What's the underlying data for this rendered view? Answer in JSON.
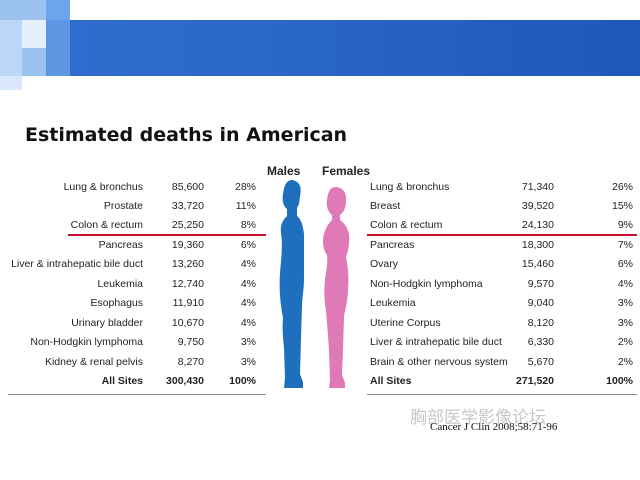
{
  "title": "Estimated deaths in American",
  "headers": {
    "males": "Males",
    "females": "Females"
  },
  "males": {
    "rows": [
      {
        "site": "Lung & bronchus",
        "deaths": "85,600",
        "pct": "28%"
      },
      {
        "site": "Prostate",
        "deaths": "33,720",
        "pct": "11%"
      },
      {
        "site": "Colon & rectum",
        "deaths": "25,250",
        "pct": "8%"
      },
      {
        "site": "Pancreas",
        "deaths": "19,360",
        "pct": "6%"
      },
      {
        "site": "Liver & intrahepatic bile duct",
        "deaths": "13,260",
        "pct": "4%"
      },
      {
        "site": "Leukemia",
        "deaths": "12,740",
        "pct": "4%"
      },
      {
        "site": "Esophagus",
        "deaths": "11,910",
        "pct": "4%"
      },
      {
        "site": "Urinary bladder",
        "deaths": "10,670",
        "pct": "4%"
      },
      {
        "site": "Non-Hodgkin lymphoma",
        "deaths": "9,750",
        "pct": "3%"
      },
      {
        "site": "Kidney & renal pelvis",
        "deaths": "8,270",
        "pct": "3%"
      }
    ],
    "total": {
      "site": "All Sites",
      "deaths": "300,430",
      "pct": "100%"
    }
  },
  "females": {
    "rows": [
      {
        "site": "Lung & bronchus",
        "deaths": "71,340",
        "pct": "26%"
      },
      {
        "site": "Breast",
        "deaths": "39,520",
        "pct": "15%"
      },
      {
        "site": "Colon & rectum",
        "deaths": "24,130",
        "pct": "9%"
      },
      {
        "site": "Pancreas",
        "deaths": "18,300",
        "pct": "7%"
      },
      {
        "site": "Ovary",
        "deaths": "15,460",
        "pct": "6%"
      },
      {
        "site": "Non-Hodgkin lymphoma",
        "deaths": "9,570",
        "pct": "4%"
      },
      {
        "site": "Leukemia",
        "deaths": "9,040",
        "pct": "3%"
      },
      {
        "site": "Uterine Corpus",
        "deaths": "8,120",
        "pct": "3%"
      },
      {
        "site": "Liver & intrahepatic bile duct",
        "deaths": "6,330",
        "pct": "2%"
      },
      {
        "site": "Brain & other nervous system",
        "deaths": "5,670",
        "pct": "2%"
      }
    ],
    "total": {
      "site": "All Sites",
      "deaths": "271,520",
      "pct": "100%"
    }
  },
  "citation": "Cancer J Clin 2008;58:71-96",
  "watermark": "胸部医学影像论坛",
  "colors": {
    "header_blue": "#2a68c9",
    "male_figure": "#1f6fbf",
    "female_figure": "#e07ab6",
    "highlight_line": "#c8102e"
  }
}
